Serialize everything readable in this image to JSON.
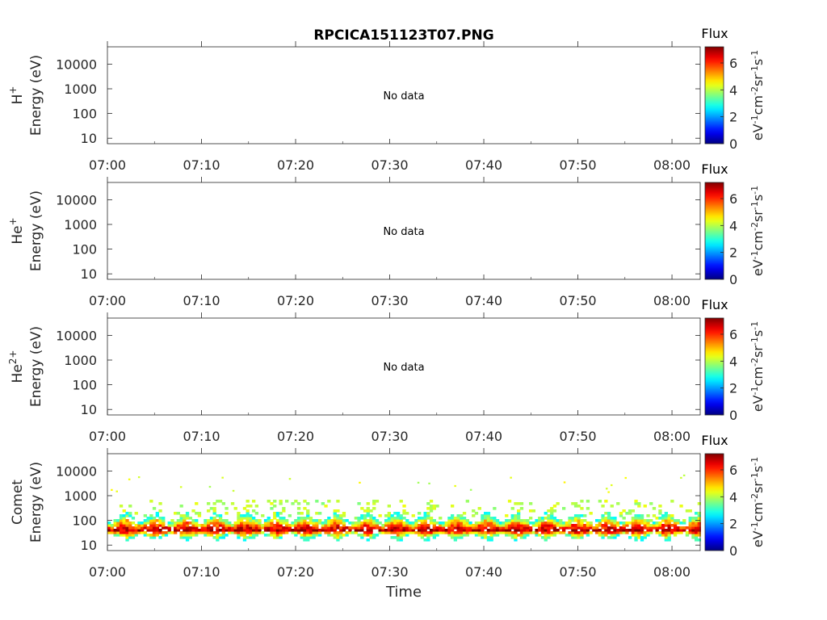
{
  "title": "RPCICA151123T07.PNG",
  "xlabel": "Time",
  "no_data_text": "No data",
  "colorbar": {
    "title": "Flux",
    "ticks": [
      0,
      2,
      4,
      6
    ],
    "range": [
      0,
      7.2
    ],
    "unit_label": {
      "base1": "eV",
      "sup1": "-1",
      "base2": "cm",
      "sup2": "-2",
      "base3": "sr",
      "sup3": "-1",
      "base4": "s",
      "sup4": "-1"
    },
    "colormap": "jet"
  },
  "chart_data": [
    {
      "type": "heatmap",
      "species": {
        "base": "H",
        "sup": "+"
      },
      "ylabel": "Energy (eV)",
      "yscale": "log",
      "ylim": [
        6,
        50000
      ],
      "yticks": [
        10,
        100,
        1000,
        10000
      ],
      "x_ticks": [
        "07:00",
        "07:10",
        "07:20",
        "07:30",
        "07:40",
        "07:50",
        "08:00"
      ],
      "x_range_minutes": [
        0,
        63
      ],
      "has_data": false
    },
    {
      "type": "heatmap",
      "species": {
        "base": "He",
        "sup": "+"
      },
      "ylabel": "Energy (eV)",
      "yscale": "log",
      "ylim": [
        6,
        50000
      ],
      "yticks": [
        10,
        100,
        1000,
        10000
      ],
      "x_ticks": [
        "07:00",
        "07:10",
        "07:20",
        "07:30",
        "07:40",
        "07:50",
        "08:00"
      ],
      "x_range_minutes": [
        0,
        63
      ],
      "has_data": false
    },
    {
      "type": "heatmap",
      "species": {
        "base": "He",
        "sup": "2+"
      },
      "ylabel": "Energy (eV)",
      "yscale": "log",
      "ylim": [
        6,
        50000
      ],
      "yticks": [
        10,
        100,
        1000,
        10000
      ],
      "x_ticks": [
        "07:00",
        "07:10",
        "07:20",
        "07:30",
        "07:40",
        "07:50",
        "08:00"
      ],
      "x_range_minutes": [
        0,
        63
      ],
      "has_data": false
    },
    {
      "type": "heatmap",
      "species": {
        "base": "Comet",
        "sup": ""
      },
      "ylabel": "Energy (eV)",
      "yscale": "log",
      "ylim": [
        6,
        50000
      ],
      "yticks": [
        10,
        100,
        1000,
        10000
      ],
      "x_ticks": [
        "07:00",
        "07:10",
        "07:20",
        "07:30",
        "07:40",
        "07:50",
        "08:00"
      ],
      "x_range_minutes": [
        0,
        63
      ],
      "has_data": true,
      "bursts": {
        "period_minutes": 3.2,
        "first_center_minutes": 1.8,
        "count": 19,
        "peak_energy_eV": 40,
        "peak_flux": 6.8,
        "max_energy_eV": 700,
        "sporadic_high_energy_eV": [
          1500,
          8000
        ]
      }
    }
  ]
}
